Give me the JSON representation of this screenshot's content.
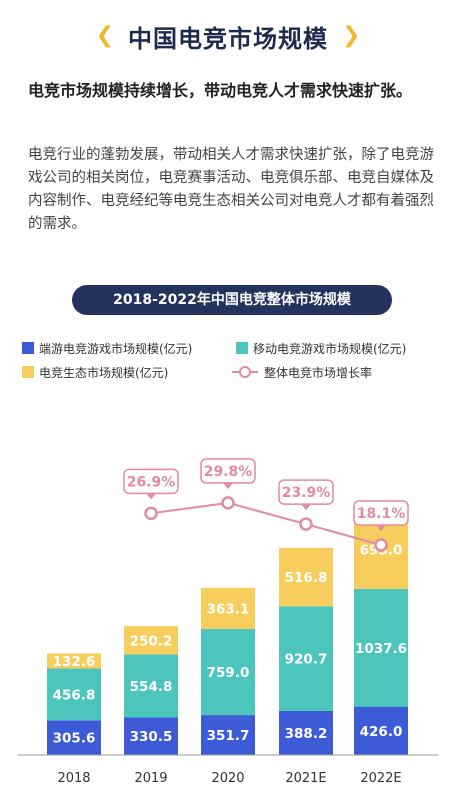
{
  "page": {
    "title": "中国电竞市场规模",
    "left_chevron": "❮",
    "right_chevron": "❯",
    "headline": "电竞市场规模持续增长，带动电竞人才需求快速扩张。",
    "body": "电竞行业的蓬勃发展，带动相关人才需求快速扩张，除了电竞游戏公司的相关岗位，电竞赛事活动、电竞俱乐部、电竞自媒体及内容制作、电竞经纪等电竞生态相关公司对电竞人才都有着强烈的需求。"
  },
  "colors": {
    "pc": "#3d5bd6",
    "mobile": "#4cc6bd",
    "eco": "#f7ce5d",
    "growth": "#e48aa2",
    "title_bg": "#24335e"
  },
  "chart_data": {
    "type": "bar",
    "stacked": true,
    "title": "2018-2022年中国电竞整体市场规模",
    "categories": [
      "2018",
      "2019",
      "2020",
      "2021E",
      "2022E"
    ],
    "series": [
      {
        "name": "端游电竞游戏市场规模(亿元)",
        "values": [
          305.6,
          330.5,
          351.7,
          388.2,
          426.0
        ],
        "labels": [
          "305.6",
          "330.5",
          "351.7",
          "388.2",
          "426.0"
        ]
      },
      {
        "name": "移动电竞游戏市场规模(亿元)",
        "values": [
          456.8,
          554.8,
          759.0,
          920.7,
          1037.6
        ],
        "labels": [
          "456.8",
          "554.8",
          "759.0",
          "920.7",
          "1037.6"
        ]
      },
      {
        "name": "电竞生态市场规模(亿元)",
        "values": [
          132.6,
          250.2,
          363.1,
          516.8,
          693.0
        ],
        "labels": [
          "132.6",
          "250.2",
          "363.1",
          "516.8",
          "693.0"
        ]
      }
    ],
    "line_series": {
      "name": "整体电竞市场增长率",
      "categories": [
        "2019",
        "2020",
        "2021E",
        "2022E"
      ],
      "values": [
        26.9,
        29.8,
        23.9,
        18.1
      ],
      "labels": [
        "26.9%",
        "29.8%",
        "23.9%",
        "18.1%"
      ]
    },
    "legend_position": "top",
    "grid": false
  }
}
